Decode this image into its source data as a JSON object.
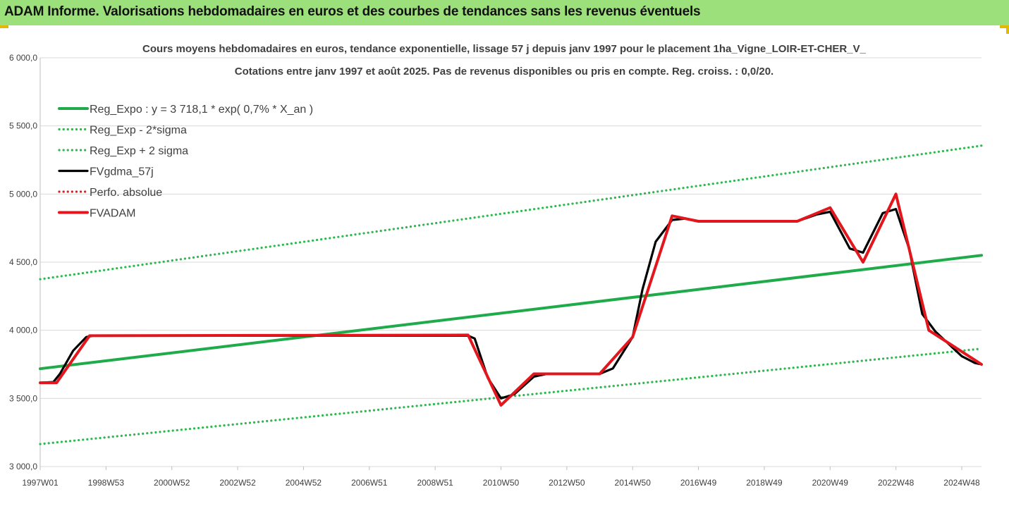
{
  "banner": {
    "title": "ADAM Informe. Valorisations hebdomadaires en euros et des courbes de tendances sans les revenus éventuels"
  },
  "colors": {
    "banner_bg": "#9be07a",
    "reg_expo": "#1fab4a",
    "sigma_lines": "#2eb84f",
    "fvgdma": "#000000",
    "perfo": "#e02020",
    "fvadam": "#e3161d",
    "grid": "#d9d9d9"
  },
  "chart_data": {
    "type": "line",
    "title": "Cours moyens hebdomadaires en euros, tendance exponentielle, lissage 57 j depuis janv 1997 pour le placement 1ha_Vigne_LOIR-ET-CHER_V_",
    "subtitle": "Cotations entre janv 1997 et août 2025.  Pas de revenus disponibles ou pris en compte. Reg. croiss. : 0,0/20.",
    "xlabel": "",
    "ylabel": "",
    "ylim": [
      3000,
      6000
    ],
    "xlim": [
      1997.0,
      2025.6
    ],
    "y_ticks": [
      "3 000,0",
      "3 500,0",
      "4 000,0",
      "4 500,0",
      "5 000,0",
      "5 500,0",
      "6 000,0"
    ],
    "y_tick_values": [
      3000,
      3500,
      4000,
      4500,
      5000,
      5500,
      6000
    ],
    "x_ticks": [
      "1997W01",
      "1998W53",
      "2000W52",
      "2002W52",
      "2004W52",
      "2006W51",
      "2008W51",
      "2010W50",
      "2012W50",
      "2014W50",
      "2016W49",
      "2018W49",
      "2020W49",
      "2022W48",
      "2024W48"
    ],
    "x_tick_values": [
      1997.0,
      1999.0,
      2001.0,
      2003.0,
      2005.0,
      2007.0,
      2009.0,
      2011.0,
      2013.0,
      2015.0,
      2017.0,
      2019.0,
      2021.0,
      2023.0,
      2025.0
    ],
    "grid": "horizontal",
    "legend_position": "top-left",
    "series": [
      {
        "name": "Reg_Expo : y = 3 718,1 * exp( 0,7% *  X_an )",
        "style": "solid-thick",
        "color": "#1fab4a",
        "x": [
          1997.0,
          2025.6
        ],
        "y": [
          3718.1,
          4550.0
        ]
      },
      {
        "name": "Reg_Exp - 2*sigma",
        "style": "dotted",
        "color": "#2eb84f",
        "x": [
          1997.0,
          2025.6
        ],
        "y": [
          3165.0,
          3865.0
        ]
      },
      {
        "name": "Reg_Exp + 2 sigma",
        "style": "dotted",
        "color": "#2eb84f",
        "x": [
          1997.0,
          2025.6
        ],
        "y": [
          4375.0,
          5355.0
        ]
      },
      {
        "name": "FVgdma_57j",
        "style": "solid",
        "color": "#000000",
        "x": [
          1997.0,
          1997.4,
          1997.6,
          1998.0,
          1998.4,
          1998.6,
          2010.0,
          2010.2,
          2010.6,
          2011.0,
          2011.4,
          2012.0,
          2012.4,
          2014.0,
          2014.4,
          2015.0,
          2015.3,
          2015.7,
          2016.2,
          2016.6,
          2017.0,
          2020.0,
          2020.6,
          2021.0,
          2021.6,
          2022.0,
          2022.6,
          2023.0,
          2023.4,
          2023.8,
          2024.2,
          2024.6,
          2025.0,
          2025.4,
          2025.6
        ],
        "y": [
          3615,
          3620,
          3680,
          3850,
          3950,
          3960,
          3960,
          3940,
          3650,
          3500,
          3530,
          3660,
          3680,
          3680,
          3720,
          3950,
          4300,
          4650,
          4810,
          4820,
          4800,
          4800,
          4850,
          4870,
          4600,
          4570,
          4860,
          4890,
          4600,
          4120,
          3990,
          3900,
          3810,
          3760,
          3750
        ]
      },
      {
        "name": "Perfo. absolue",
        "style": "dotted",
        "color": "#e02020",
        "x": [],
        "y": []
      },
      {
        "name": "FVADAM",
        "style": "solid-thick",
        "color": "#e3161d",
        "x": [
          1997.0,
          1997.5,
          1998.5,
          2010.0,
          2011.0,
          2012.0,
          2014.0,
          2015.0,
          2016.2,
          2017.0,
          2020.0,
          2021.0,
          2022.0,
          2023.0,
          2024.0,
          2025.6
        ],
        "y": [
          3615,
          3615,
          3960,
          3965,
          3450,
          3680,
          3680,
          3950,
          4840,
          4800,
          4800,
          4900,
          4500,
          5000,
          4000,
          3750
        ]
      }
    ]
  }
}
